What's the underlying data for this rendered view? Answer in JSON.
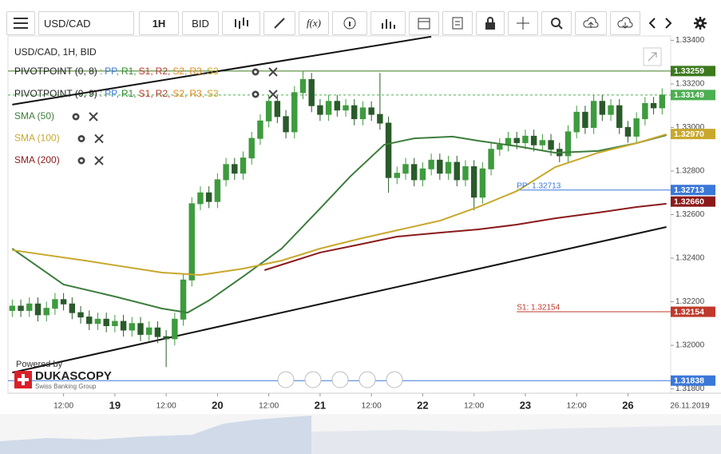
{
  "toolbar": {
    "symbol": "USD/CAD",
    "period": "1H",
    "side": "BID",
    "function": "f(x)"
  },
  "branding": {
    "powered": "Powered by",
    "name": "DUKASCOPY",
    "tagline": "Swiss Banking Group"
  },
  "chart_data": {
    "type": "candlestick",
    "title": "USD/CAD, 1H, BID",
    "up_color": "#3e9b3e",
    "down_color": "#2a5a2a",
    "xlim": [
      -1,
      154
    ],
    "xticks": [
      {
        "value": 12,
        "label": "12:00"
      },
      {
        "value": 24,
        "label": "19"
      },
      {
        "value": 36,
        "label": "12:00"
      },
      {
        "value": 48,
        "label": "20"
      },
      {
        "value": 60,
        "label": "12:00"
      },
      {
        "value": 72,
        "label": "21"
      },
      {
        "value": 84,
        "label": "12:00"
      },
      {
        "value": 96,
        "label": "22"
      },
      {
        "value": 108,
        "label": "12:00"
      },
      {
        "value": 120,
        "label": "23"
      },
      {
        "value": 132,
        "label": "12:00"
      },
      {
        "value": 144,
        "label": "26"
      }
    ],
    "current_time_label": "26.11.2019",
    "ylim": [
      1.3178,
      1.3342
    ],
    "yticks": [
      {
        "value": 1.318,
        "label": "1.31800"
      },
      {
        "value": 1.32,
        "label": "1.32000"
      },
      {
        "value": 1.322,
        "label": "1.32200"
      },
      {
        "value": 1.324,
        "label": "1.32400"
      },
      {
        "value": 1.326,
        "label": "1.32600"
      },
      {
        "value": 1.328,
        "label": "1.32800"
      },
      {
        "value": 1.33,
        "label": "1.33000"
      },
      {
        "value": 1.332,
        "label": "1.33200"
      },
      {
        "value": 1.334,
        "label": "1.33400"
      }
    ],
    "x": [
      0,
      2,
      4,
      6,
      8,
      10,
      12,
      14,
      16,
      18,
      20,
      22,
      24,
      26,
      28,
      30,
      32,
      34,
      36,
      38,
      40,
      42,
      44,
      46,
      48,
      50,
      52,
      54,
      56,
      58,
      60,
      62,
      64,
      66,
      68,
      70,
      72,
      74,
      76,
      78,
      80,
      82,
      84,
      86,
      88,
      90,
      92,
      94,
      96,
      98,
      100,
      102,
      104,
      106,
      108,
      110,
      112,
      114,
      116,
      118,
      120,
      122,
      124,
      126,
      128,
      130,
      132,
      134,
      136,
      138,
      140,
      142,
      144,
      146,
      148,
      150,
      152
    ],
    "open": [
      1.3216,
      1.3218,
      1.3216,
      1.3219,
      1.3214,
      1.3217,
      1.3221,
      1.3219,
      1.3215,
      1.3213,
      1.321,
      1.3212,
      1.3209,
      1.3211,
      1.3207,
      1.321,
      1.3205,
      1.3208,
      1.3204,
      1.3203,
      1.3212,
      1.323,
      1.3265,
      1.327,
      1.3266,
      1.3276,
      1.3283,
      1.3279,
      1.3286,
      1.3295,
      1.3303,
      1.3312,
      1.3305,
      1.3298,
      1.3316,
      1.3322,
      1.331,
      1.3306,
      1.3312,
      1.3308,
      1.331,
      1.3304,
      1.3309,
      1.3306,
      1.3302,
      1.3277,
      1.3279,
      1.3283,
      1.3276,
      1.3281,
      1.3285,
      1.3279,
      1.3284,
      1.3276,
      1.3282,
      1.3268,
      1.3281,
      1.329,
      1.3292,
      1.3295,
      1.3293,
      1.3296,
      1.3292,
      1.3294,
      1.329,
      1.3287,
      1.3298,
      1.3307,
      1.33,
      1.3312,
      1.3306,
      1.331,
      1.33,
      1.3296,
      1.3304,
      1.3311,
      1.3309
    ],
    "high": [
      1.3221,
      1.3221,
      1.3222,
      1.3222,
      1.322,
      1.3224,
      1.3224,
      1.3222,
      1.3218,
      1.3216,
      1.3215,
      1.3215,
      1.3214,
      1.3214,
      1.3213,
      1.3213,
      1.3211,
      1.3211,
      1.3207,
      1.3215,
      1.3233,
      1.3268,
      1.3273,
      1.3273,
      1.3279,
      1.3286,
      1.3286,
      1.3289,
      1.3298,
      1.3306,
      1.3315,
      1.3315,
      1.3308,
      1.3319,
      1.3326,
      1.3325,
      1.3313,
      1.3315,
      1.3315,
      1.3313,
      1.3313,
      1.3312,
      1.3312,
      1.3325,
      1.3305,
      1.3282,
      1.3286,
      1.3286,
      1.3284,
      1.3288,
      1.3288,
      1.3287,
      1.3287,
      1.3285,
      1.3285,
      1.3284,
      1.3293,
      1.3295,
      1.3298,
      1.3298,
      1.3299,
      1.3299,
      1.3297,
      1.3297,
      1.3293,
      1.3301,
      1.331,
      1.331,
      1.3315,
      1.3315,
      1.3313,
      1.3313,
      1.3303,
      1.3307,
      1.3314,
      1.3314,
      1.3318
    ],
    "low": [
      1.3213,
      1.3213,
      1.3213,
      1.3211,
      1.3211,
      1.3214,
      1.3216,
      1.3212,
      1.321,
      1.3207,
      1.3207,
      1.3206,
      1.3206,
      1.3204,
      1.3204,
      1.3202,
      1.3202,
      1.3201,
      1.319,
      1.32,
      1.3209,
      1.3227,
      1.3262,
      1.3263,
      1.3263,
      1.3273,
      1.3276,
      1.3276,
      1.3283,
      1.3292,
      1.33,
      1.3302,
      1.3295,
      1.3295,
      1.3313,
      1.3307,
      1.3303,
      1.3303,
      1.3305,
      1.3305,
      1.3301,
      1.3301,
      1.3303,
      1.3299,
      1.327,
      1.3274,
      1.3276,
      1.3273,
      1.3273,
      1.3278,
      1.3276,
      1.3276,
      1.3273,
      1.3273,
      1.3262,
      1.3265,
      1.3278,
      1.3287,
      1.3289,
      1.329,
      1.329,
      1.3289,
      1.3289,
      1.3287,
      1.3284,
      1.3284,
      1.3295,
      1.3297,
      1.3297,
      1.3303,
      1.3303,
      1.3297,
      1.3293,
      1.3293,
      1.3301,
      1.3306,
      1.3306
    ],
    "close": [
      1.3218,
      1.3216,
      1.3219,
      1.3214,
      1.3217,
      1.3221,
      1.3219,
      1.3215,
      1.3213,
      1.321,
      1.3212,
      1.3209,
      1.3211,
      1.3207,
      1.321,
      1.3205,
      1.3208,
      1.3204,
      1.3203,
      1.3212,
      1.323,
      1.3265,
      1.327,
      1.3266,
      1.3276,
      1.3283,
      1.3279,
      1.3286,
      1.3295,
      1.3303,
      1.3312,
      1.3305,
      1.3298,
      1.3316,
      1.3322,
      1.331,
      1.3306,
      1.3312,
      1.3308,
      1.331,
      1.3304,
      1.3309,
      1.3306,
      1.3302,
      1.3277,
      1.3279,
      1.3283,
      1.3276,
      1.3281,
      1.3285,
      1.3279,
      1.3284,
      1.3276,
      1.3282,
      1.3268,
      1.3281,
      1.329,
      1.3292,
      1.3295,
      1.3293,
      1.3296,
      1.3292,
      1.3294,
      1.329,
      1.3287,
      1.3298,
      1.3307,
      1.33,
      1.3312,
      1.3306,
      1.331,
      1.33,
      1.3296,
      1.3304,
      1.3311,
      1.3309,
      1.33149
    ],
    "pivot_legends": [
      {
        "name": "PIVOTPOINT (0, 8)",
        "levels": [
          ":",
          "PP,",
          "R1,",
          "S1,",
          "R2,",
          "S2,",
          "R3,",
          "S3"
        ]
      },
      {
        "name": "PIVOTPOINT (0, 9)",
        "levels": [
          ":",
          "PP,",
          "R1,",
          "S1,",
          "R2,",
          "S2,",
          "R3,",
          "S3"
        ]
      }
    ],
    "pivot_colors": [
      "#888888",
      "#3a78d8",
      "#2e8b2e",
      "#c0392b",
      "#b03a2e",
      "#e08a1e",
      "#e08a1e",
      "#c8a82c"
    ],
    "series": [
      {
        "name": "SMA (50)",
        "color": "#3c7d3c",
        "x": [
          0,
          12,
          24,
          35,
          41,
          46,
          54,
          63,
          72,
          79,
          87,
          94,
          103,
          109,
          118,
          127,
          137,
          146,
          153
        ],
        "values": [
          1.32444,
          1.32279,
          1.32224,
          1.32169,
          1.3215,
          1.32206,
          1.32316,
          1.32444,
          1.32628,
          1.32774,
          1.32921,
          1.3295,
          1.32958,
          1.32939,
          1.32914,
          1.32884,
          1.32892,
          1.32928,
          1.32965
        ]
      },
      {
        "name": "SMA (100)",
        "color": "#c8a82c",
        "x": [
          0,
          17,
          35,
          44,
          54,
          63,
          72,
          81,
          90,
          100,
          109,
          118,
          127,
          137,
          146,
          153
        ],
        "values": [
          1.32437,
          1.32389,
          1.32334,
          1.32323,
          1.32352,
          1.32389,
          1.32444,
          1.32488,
          1.32528,
          1.32572,
          1.32635,
          1.32708,
          1.32818,
          1.32884,
          1.32928,
          1.32969
        ]
      },
      {
        "name": "SMA (200)",
        "color": "#8b1a1a",
        "x": [
          59,
          72,
          81,
          90,
          100,
          109,
          118,
          127,
          137,
          146,
          153
        ],
        "values": [
          1.32345,
          1.32426,
          1.32462,
          1.32499,
          1.32517,
          1.32532,
          1.32554,
          1.32583,
          1.32609,
          1.32635,
          1.3265
        ]
      }
    ],
    "trendlines": [
      {
        "x": [
          0,
          98
        ],
        "values": [
          1.33105,
          1.33417
        ]
      },
      {
        "x": [
          0,
          153
        ],
        "values": [
          1.31875,
          1.32543
        ]
      }
    ],
    "levels": [
      {
        "value": 1.33259,
        "label": "1.33259",
        "color": "#3d7a1e",
        "line": "solid"
      },
      {
        "value": 1.33149,
        "label": "1.33149",
        "color": "#4caf50",
        "line": "dashed"
      },
      {
        "value": 1.3297,
        "label": "1.32970",
        "color": "#c8a82c",
        "line": "none"
      },
      {
        "value": 1.32713,
        "label": "1.32713",
        "color": "#3a78d8",
        "line": "solid",
        "start": 118,
        "annotation": "PP: 1.32713"
      },
      {
        "value": 1.3266,
        "label": "1.32660",
        "color": "#8b1a1a",
        "line": "none"
      },
      {
        "value": 1.32154,
        "label": "1.32154",
        "color": "#c0392b",
        "line": "solid",
        "start": 118,
        "annotation": "S1: 1.32154"
      },
      {
        "value": 1.31838,
        "label": "1.31838",
        "color": "#3a78d8",
        "line": "solid"
      }
    ]
  }
}
